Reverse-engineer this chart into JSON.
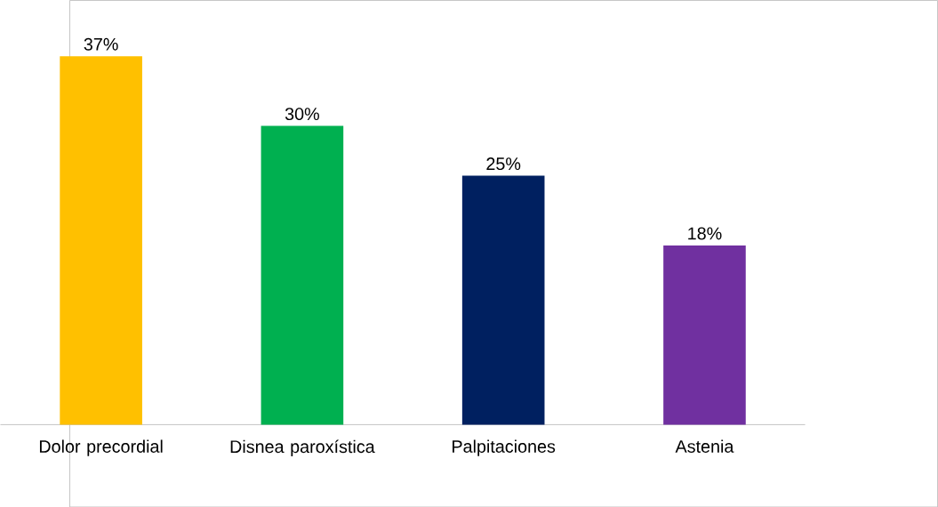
{
  "chart_data": {
    "type": "bar",
    "categories": [
      "Dolor precordial",
      "Disnea paroxística",
      "Palpitaciones",
      "Astenia"
    ],
    "values": [
      37,
      30,
      25,
      18
    ],
    "colors": [
      "#ffc000",
      "#00b050",
      "#002060",
      "#7030a0"
    ],
    "value_labels": [
      "37%",
      "30%",
      "25%",
      "18%"
    ]
  }
}
